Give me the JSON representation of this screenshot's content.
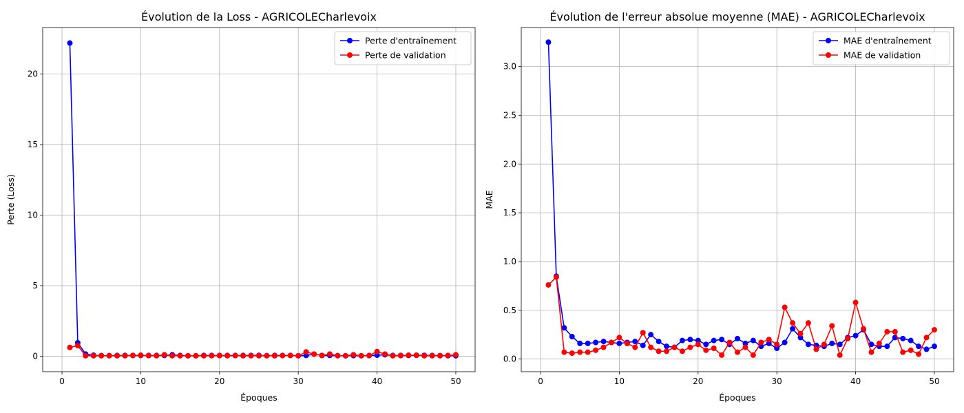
{
  "chart_data": [
    {
      "type": "line",
      "title": "Évolution de la Loss - AGRICOLECharlevoix",
      "xlabel": "Époques",
      "ylabel": "Perte (Loss)",
      "xlim": [
        -2.45,
        52.45
      ],
      "ylim": [
        -1.1,
        23.3
      ],
      "xticks": [
        0,
        10,
        20,
        30,
        40,
        50
      ],
      "yticks": [
        0,
        5,
        10,
        15,
        20
      ],
      "grid": true,
      "legend": "top-right",
      "x": [
        1,
        2,
        3,
        4,
        5,
        6,
        7,
        8,
        9,
        10,
        11,
        12,
        13,
        14,
        15,
        16,
        17,
        18,
        19,
        20,
        21,
        22,
        23,
        24,
        25,
        26,
        27,
        28,
        29,
        30,
        31,
        32,
        33,
        34,
        35,
        36,
        37,
        38,
        39,
        40,
        41,
        42,
        43,
        44,
        45,
        46,
        47,
        48,
        49,
        50
      ],
      "series": [
        {
          "name": "Perte d'entraînement",
          "color": "#0000ff",
          "values": [
            22.2,
            0.95,
            0.15,
            0.07,
            0.04,
            0.04,
            0.05,
            0.05,
            0.05,
            0.05,
            0.05,
            0.05,
            0.05,
            0.1,
            0.05,
            0.03,
            0.03,
            0.05,
            0.05,
            0.05,
            0.05,
            0.05,
            0.05,
            0.05,
            0.06,
            0.04,
            0.05,
            0.05,
            0.05,
            0.03,
            0.05,
            0.14,
            0.05,
            0.05,
            0.04,
            0.03,
            0.04,
            0.03,
            0.05,
            0.07,
            0.1,
            0.05,
            0.05,
            0.05,
            0.06,
            0.06,
            0.05,
            0.04,
            0.03,
            0.03
          ]
        },
        {
          "name": "Perte de validation",
          "color": "#ff0000",
          "values": [
            0.62,
            0.75,
            0.03,
            0.03,
            0.03,
            0.03,
            0.03,
            0.03,
            0.05,
            0.07,
            0.04,
            0.03,
            0.1,
            0.03,
            0.03,
            0.03,
            0.03,
            0.03,
            0.03,
            0.04,
            0.03,
            0.04,
            0.03,
            0.03,
            0.03,
            0.03,
            0.03,
            0.04,
            0.05,
            0.03,
            0.3,
            0.15,
            0.05,
            0.15,
            0.03,
            0.03,
            0.1,
            0.03,
            0.04,
            0.33,
            0.15,
            0.03,
            0.04,
            0.07,
            0.07,
            0.03,
            0.03,
            0.03,
            0.05,
            0.1
          ]
        }
      ]
    },
    {
      "type": "line",
      "title": "Évolution de l'erreur absolue moyenne (MAE) - AGRICOLECharlevoix",
      "xlabel": "Époques",
      "ylabel": "MAE",
      "xlim": [
        -2.45,
        52.45
      ],
      "ylim": [
        -0.13,
        3.4
      ],
      "xticks": [
        0,
        10,
        20,
        30,
        40,
        50
      ],
      "yticks": [
        0.0,
        0.5,
        1.0,
        1.5,
        2.0,
        2.5,
        3.0
      ],
      "grid": true,
      "legend": "top-right",
      "x": [
        1,
        2,
        3,
        4,
        5,
        6,
        7,
        8,
        9,
        10,
        11,
        12,
        13,
        14,
        15,
        16,
        17,
        18,
        19,
        20,
        21,
        22,
        23,
        24,
        25,
        26,
        27,
        28,
        29,
        30,
        31,
        32,
        33,
        34,
        35,
        36,
        37,
        38,
        39,
        40,
        41,
        42,
        43,
        44,
        45,
        46,
        47,
        48,
        49,
        50
      ],
      "series": [
        {
          "name": "MAE d'entraînement",
          "color": "#0000ff",
          "values": [
            3.25,
            0.85,
            0.32,
            0.23,
            0.16,
            0.16,
            0.17,
            0.18,
            0.17,
            0.16,
            0.17,
            0.18,
            0.14,
            0.25,
            0.18,
            0.13,
            0.12,
            0.19,
            0.2,
            0.19,
            0.15,
            0.19,
            0.2,
            0.15,
            0.21,
            0.16,
            0.19,
            0.13,
            0.16,
            0.11,
            0.17,
            0.31,
            0.22,
            0.15,
            0.14,
            0.13,
            0.16,
            0.15,
            0.22,
            0.24,
            0.3,
            0.15,
            0.13,
            0.13,
            0.22,
            0.21,
            0.19,
            0.13,
            0.1,
            0.13
          ]
        },
        {
          "name": "MAE de validation",
          "color": "#ff0000",
          "values": [
            0.76,
            0.84,
            0.07,
            0.06,
            0.07,
            0.07,
            0.09,
            0.12,
            0.17,
            0.22,
            0.16,
            0.12,
            0.27,
            0.12,
            0.08,
            0.08,
            0.12,
            0.08,
            0.12,
            0.15,
            0.09,
            0.11,
            0.04,
            0.17,
            0.07,
            0.12,
            0.04,
            0.17,
            0.2,
            0.15,
            0.53,
            0.37,
            0.26,
            0.37,
            0.1,
            0.15,
            0.34,
            0.04,
            0.21,
            0.58,
            0.31,
            0.07,
            0.16,
            0.28,
            0.28,
            0.07,
            0.09,
            0.05,
            0.22,
            0.3
          ]
        }
      ]
    }
  ]
}
